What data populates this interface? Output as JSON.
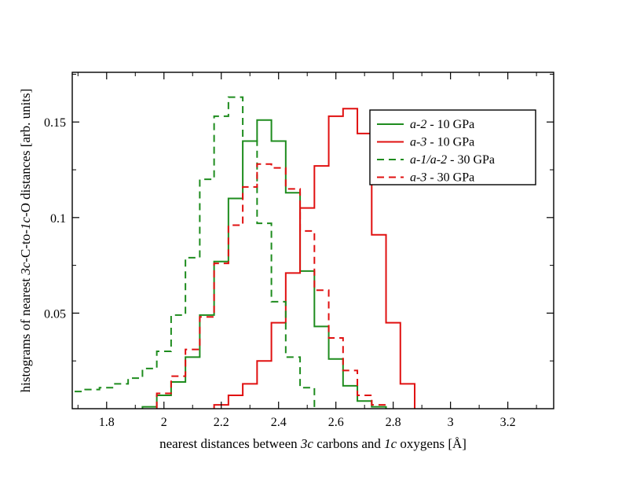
{
  "chart_data": {
    "type": "line",
    "style": "step-histogram",
    "xlabel_parts": [
      {
        "text": "nearest distances between ",
        "italic": false
      },
      {
        "text": "3c",
        "italic": true
      },
      {
        "text": " carbons and ",
        "italic": false
      },
      {
        "text": "1c",
        "italic": true
      },
      {
        "text": " oxygens [Å]",
        "italic": false
      }
    ],
    "ylabel_parts": [
      {
        "text": "histograms of nearest ",
        "italic": false
      },
      {
        "text": "3c",
        "italic": true
      },
      {
        "text": "-C-to-",
        "italic": false
      },
      {
        "text": "1c",
        "italic": true
      },
      {
        "text": "-O distances [arb. units]",
        "italic": false
      }
    ],
    "xlim": [
      1.68,
      3.36
    ],
    "ylim": [
      0.0,
      0.176
    ],
    "xticks": [
      1.8,
      2.0,
      2.2,
      2.4,
      2.6,
      2.8,
      3.0,
      3.2
    ],
    "xtick_labels": [
      "1.8",
      "2",
      "2.2",
      "2.4",
      "2.6",
      "2.8",
      "3",
      "3.2"
    ],
    "yticks": [
      0.05,
      0.1,
      0.15
    ],
    "ytick_labels": [
      "0.05",
      "0.1",
      "0.15"
    ],
    "legend_position": "top-right",
    "bin_width": 0.05,
    "series": [
      {
        "name_italic": "a-2",
        "name_plain": "  - 10 GPa",
        "color": "#1e8c1e",
        "dash": "solid",
        "x": [
          1.95,
          2.0,
          2.05,
          2.1,
          2.15,
          2.2,
          2.25,
          2.3,
          2.35,
          2.4,
          2.45,
          2.5,
          2.55,
          2.6,
          2.65,
          2.7,
          2.75
        ],
        "y": [
          0.001,
          0.007,
          0.014,
          0.027,
          0.049,
          0.077,
          0.11,
          0.14,
          0.151,
          0.14,
          0.113,
          0.072,
          0.043,
          0.026,
          0.012,
          0.004,
          0.001
        ]
      },
      {
        "name_italic": "a-3",
        "name_plain": "  - 10 GPa",
        "color": "#e01010",
        "dash": "solid",
        "x": [
          2.2,
          2.25,
          2.3,
          2.35,
          2.4,
          2.45,
          2.5,
          2.55,
          2.6,
          2.65,
          2.7,
          2.75,
          2.8,
          2.85
        ],
        "y": [
          0.002,
          0.007,
          0.013,
          0.025,
          0.045,
          0.071,
          0.105,
          0.127,
          0.153,
          0.157,
          0.144,
          0.091,
          0.045,
          0.013
        ]
      },
      {
        "name_italic": "a-1/a-2",
        "name_plain": "  - 30 GPa",
        "color": "#1e8c1e",
        "dash": "dashed",
        "x": [
          1.65,
          1.7,
          1.75,
          1.8,
          1.85,
          1.9,
          1.95,
          2.0,
          2.05,
          2.1,
          2.15,
          2.2,
          2.25,
          2.3,
          2.35,
          2.4,
          2.45,
          2.5
        ],
        "y": [
          0.009,
          0.009,
          0.01,
          0.011,
          0.013,
          0.016,
          0.021,
          0.03,
          0.049,
          0.079,
          0.12,
          0.153,
          0.163,
          0.14,
          0.097,
          0.056,
          0.027,
          0.011
        ]
      },
      {
        "name_italic": "a-3",
        "name_plain": "  - 30 GPa",
        "color": "#e01010",
        "dash": "dashed",
        "x": [
          2.0,
          2.05,
          2.1,
          2.15,
          2.2,
          2.25,
          2.3,
          2.35,
          2.4,
          2.45,
          2.5,
          2.55,
          2.6,
          2.65,
          2.7,
          2.75
        ],
        "y": [
          0.008,
          0.017,
          0.031,
          0.048,
          0.076,
          0.096,
          0.116,
          0.128,
          0.126,
          0.115,
          0.093,
          0.062,
          0.037,
          0.02,
          0.007,
          0.002
        ]
      }
    ]
  }
}
